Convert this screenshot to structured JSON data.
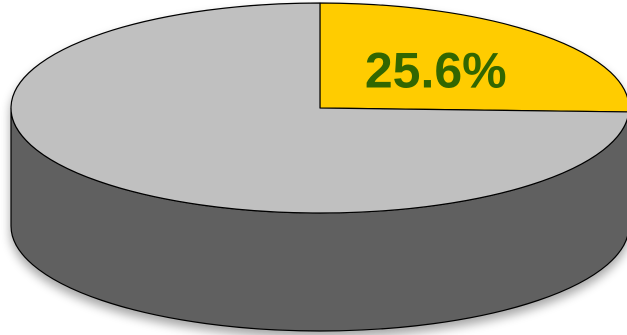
{
  "chart_data": {
    "type": "pie",
    "style": "3d",
    "slices": [
      {
        "value": 25.6,
        "label": "25.6%",
        "color": "#FFCC00"
      },
      {
        "value": 74.4,
        "label": "",
        "color": "#C0C0C0"
      }
    ],
    "side_color": "#606060",
    "label_color": "#336600",
    "legend": "none"
  }
}
